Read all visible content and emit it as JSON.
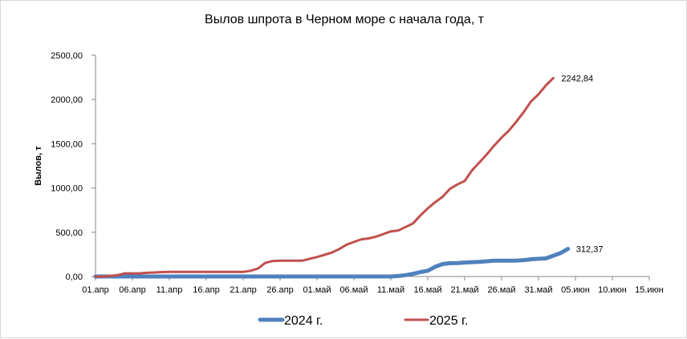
{
  "chart_data": {
    "type": "line",
    "title": "Вылов шпрота в Черном море с начала года, т",
    "xlabel": "",
    "ylabel": "Вылов, т",
    "ylim": [
      0,
      2500
    ],
    "y_ticks": [
      "0,00",
      "500,00",
      "1000,00",
      "1500,00",
      "2000,00",
      "2500,00"
    ],
    "x_tick_labels": [
      "01.апр",
      "06.апр",
      "11.апр",
      "16.апр",
      "21.апр",
      "26.апр",
      "01.май",
      "06.май",
      "11.май",
      "16.май",
      "21.май",
      "26.май",
      "31.май",
      "05.июн",
      "10.июн",
      "15.июн"
    ],
    "x_range_days": [
      0,
      75
    ],
    "grid": false,
    "legend_position": "bottom",
    "series": [
      {
        "name": "2024 г.",
        "color": "#4F81BD",
        "line_width": 5,
        "end_label": "312,37",
        "points": [
          [
            0,
            0
          ],
          [
            10,
            0
          ],
          [
            20,
            0
          ],
          [
            30,
            0
          ],
          [
            40,
            0
          ],
          [
            41,
            5
          ],
          [
            42,
            15
          ],
          [
            43,
            30
          ],
          [
            44,
            50
          ],
          [
            45,
            65
          ],
          [
            46,
            110
          ],
          [
            47,
            140
          ],
          [
            48,
            150
          ],
          [
            49,
            152
          ],
          [
            50,
            158
          ],
          [
            51,
            162
          ],
          [
            52,
            165
          ],
          [
            53,
            172
          ],
          [
            54,
            178
          ],
          [
            55,
            178
          ],
          [
            56,
            178
          ],
          [
            57,
            180
          ],
          [
            58,
            185
          ],
          [
            59,
            195
          ],
          [
            60,
            200
          ],
          [
            61,
            205
          ],
          [
            62,
            235
          ],
          [
            63,
            265
          ],
          [
            64,
            312.37
          ]
        ]
      },
      {
        "name": "2025 г.",
        "color": "#C0504D",
        "line_width": 3,
        "end_label": "2242,84",
        "points": [
          [
            0,
            0
          ],
          [
            1,
            0
          ],
          [
            2,
            5
          ],
          [
            3,
            15
          ],
          [
            4,
            35
          ],
          [
            5,
            35
          ],
          [
            6,
            35
          ],
          [
            7,
            42
          ],
          [
            8,
            45
          ],
          [
            9,
            50
          ],
          [
            10,
            52
          ],
          [
            11,
            52
          ],
          [
            12,
            52
          ],
          [
            13,
            52
          ],
          [
            14,
            52
          ],
          [
            15,
            52
          ],
          [
            16,
            52
          ],
          [
            17,
            52
          ],
          [
            18,
            52
          ],
          [
            19,
            52
          ],
          [
            20,
            52
          ],
          [
            21,
            65
          ],
          [
            22,
            90
          ],
          [
            23,
            155
          ],
          [
            24,
            175
          ],
          [
            25,
            178
          ],
          [
            26,
            178
          ],
          [
            27,
            178
          ],
          [
            28,
            178
          ],
          [
            29,
            200
          ],
          [
            30,
            220
          ],
          [
            31,
            245
          ],
          [
            32,
            270
          ],
          [
            33,
            310
          ],
          [
            34,
            360
          ],
          [
            35,
            390
          ],
          [
            36,
            420
          ],
          [
            37,
            430
          ],
          [
            38,
            450
          ],
          [
            39,
            480
          ],
          [
            40,
            510
          ],
          [
            41,
            520
          ],
          [
            42,
            560
          ],
          [
            43,
            600
          ],
          [
            44,
            690
          ],
          [
            45,
            770
          ],
          [
            46,
            840
          ],
          [
            47,
            900
          ],
          [
            48,
            990
          ],
          [
            49,
            1040
          ],
          [
            50,
            1080
          ],
          [
            51,
            1200
          ],
          [
            52,
            1290
          ],
          [
            53,
            1380
          ],
          [
            54,
            1480
          ],
          [
            55,
            1570
          ],
          [
            56,
            1650
          ],
          [
            57,
            1750
          ],
          [
            58,
            1860
          ],
          [
            59,
            1980
          ],
          [
            60,
            2060
          ],
          [
            61,
            2160
          ],
          [
            62,
            2242.84
          ]
        ]
      }
    ]
  }
}
